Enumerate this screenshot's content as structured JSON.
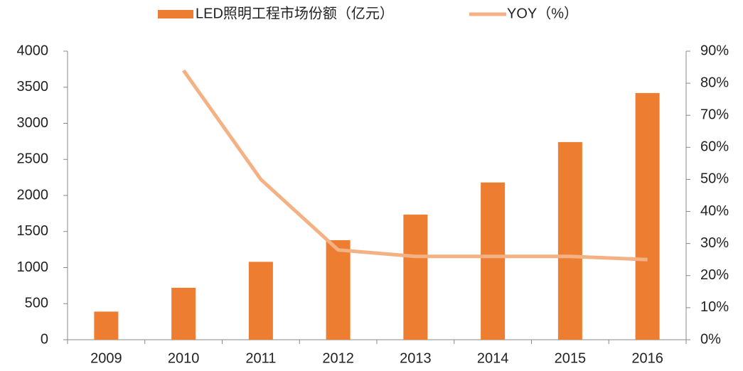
{
  "chart_data": {
    "type": "bar",
    "categories": [
      "2009",
      "2010",
      "2011",
      "2012",
      "2013",
      "2014",
      "2015",
      "2016"
    ],
    "series": [
      {
        "name": "LED照明工程市场份额（亿元）",
        "type": "bar",
        "color": "#ed7d31",
        "values": [
          390,
          720,
          1080,
          1380,
          1735,
          2180,
          2740,
          3420
        ]
      },
      {
        "name": "YOY（%）",
        "type": "line",
        "axis": "y2",
        "color": "#f4b183",
        "values": [
          null,
          84,
          50,
          28,
          26,
          26,
          26,
          25
        ]
      }
    ],
    "ylim": [
      0,
      4000
    ],
    "yticks": [
      0,
      500,
      1000,
      1500,
      2000,
      2500,
      3000,
      3500,
      4000
    ],
    "y2lim": [
      0,
      90
    ],
    "y2ticks": [
      {
        "value": 0,
        "label": "0%"
      },
      {
        "value": 10,
        "label": "10%"
      },
      {
        "value": 20,
        "label": "20%"
      },
      {
        "value": 30,
        "label": "30%"
      },
      {
        "value": 40,
        "label": "40%"
      },
      {
        "value": 50,
        "label": "50%"
      },
      {
        "value": 60,
        "label": "60%"
      },
      {
        "value": 70,
        "label": "70%"
      },
      {
        "value": 80,
        "label": "80%"
      },
      {
        "value": 90,
        "label": "90%"
      }
    ],
    "legend": "top"
  }
}
